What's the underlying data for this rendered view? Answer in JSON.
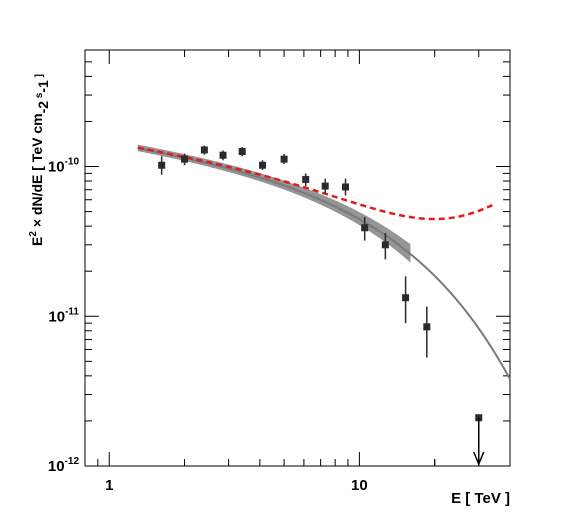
{
  "chart_data": {
    "type": "scatter",
    "xscale": "log",
    "yscale": "log",
    "xlim": [
      0.8,
      40
    ],
    "ylim": [
      1e-12,
      6e-10
    ],
    "xlabel": "E [ TeV ]",
    "ylabel_parts": [
      "E",
      "2",
      " × dN/dE [ TeV cm",
      "-2",
      " s",
      "-1",
      " ]"
    ],
    "x_ticks": [
      {
        "value": 1,
        "label": "1"
      },
      {
        "value": 10,
        "label": "10"
      }
    ],
    "y_ticks": [
      {
        "value": 1e-12,
        "base": "10",
        "exp": "-12"
      },
      {
        "value": 1e-11,
        "base": "10",
        "exp": "-11"
      },
      {
        "value": 1e-10,
        "base": "10",
        "exp": "-10"
      }
    ],
    "grid": false,
    "colors": {
      "points": "#2b2b2b",
      "band": "#8a8a8a",
      "fit_line": "#7a7a7a",
      "dashed": "#e21b1b"
    },
    "data_points": [
      {
        "x": 1.62,
        "y": 1.02e-10,
        "ylo": 8.8e-11,
        "yhi": 1.17e-10
      },
      {
        "x": 2.0,
        "y": 1.12e-10,
        "ylo": 1.02e-10,
        "yhi": 1.22e-10
      },
      {
        "x": 2.4,
        "y": 1.29e-10,
        "ylo": 1.2e-10,
        "yhi": 1.38e-10
      },
      {
        "x": 2.85,
        "y": 1.19e-10,
        "ylo": 1.1e-10,
        "yhi": 1.28e-10
      },
      {
        "x": 3.4,
        "y": 1.26e-10,
        "ylo": 1.17e-10,
        "yhi": 1.35e-10
      },
      {
        "x": 4.1,
        "y": 1.02e-10,
        "ylo": 9.5e-11,
        "yhi": 1.1e-10
      },
      {
        "x": 5.0,
        "y": 1.12e-10,
        "ylo": 1.04e-10,
        "yhi": 1.21e-10
      },
      {
        "x": 6.1,
        "y": 8.2e-11,
        "ylo": 7.4e-11,
        "yhi": 9e-11
      },
      {
        "x": 7.3,
        "y": 7.4e-11,
        "ylo": 6.6e-11,
        "yhi": 8.3e-11
      },
      {
        "x": 8.8,
        "y": 7.3e-11,
        "ylo": 6.4e-11,
        "yhi": 8.3e-11
      },
      {
        "x": 10.5,
        "y": 3.9e-11,
        "ylo": 3.2e-11,
        "yhi": 4.6e-11
      },
      {
        "x": 12.7,
        "y": 3e-11,
        "ylo": 2.4e-11,
        "yhi": 3.6e-11
      },
      {
        "x": 15.3,
        "y": 1.33e-11,
        "ylo": 9e-12,
        "yhi": 1.85e-11
      },
      {
        "x": 18.6,
        "y": 8.5e-12,
        "ylo": 5.3e-12,
        "yhi": 1.16e-11
      }
    ],
    "upper_limit": {
      "x": 30.0,
      "y": 2.1e-12
    },
    "fit_model": {
      "norm": 1.2e-10,
      "index": 2.23,
      "cutoff": 14.0,
      "e0": 3.0
    },
    "dashed_model": {
      "norm": 1.2e-10,
      "index": 2.23,
      "cutoff": 14.0,
      "e0": 3.0,
      "extra_norm": 2.6e-11,
      "extra_index": -0.6
    }
  }
}
